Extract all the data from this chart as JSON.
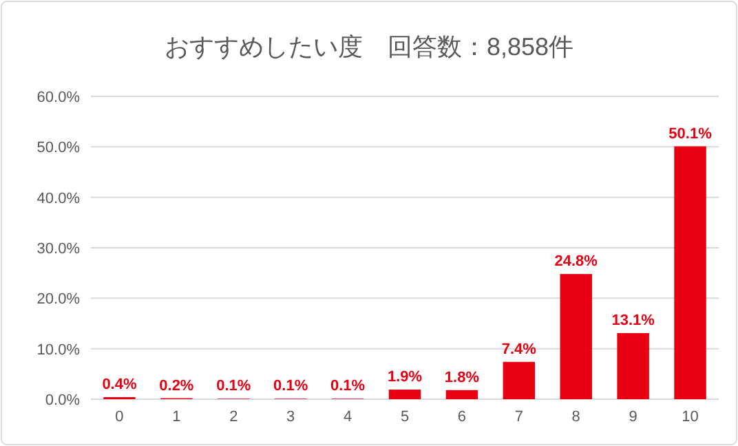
{
  "chart_data": {
    "type": "bar",
    "title": "おすすめしたい度　回答数：8,858件",
    "categories": [
      "0",
      "1",
      "2",
      "3",
      "4",
      "5",
      "6",
      "7",
      "8",
      "9",
      "10"
    ],
    "values": [
      0.4,
      0.2,
      0.1,
      0.1,
      0.1,
      1.9,
      1.8,
      7.4,
      24.8,
      13.1,
      50.1
    ],
    "value_labels": [
      "0.4%",
      "0.2%",
      "0.1%",
      "0.1%",
      "0.1%",
      "1.9%",
      "1.8%",
      "7.4%",
      "24.8%",
      "13.1%",
      "50.1%"
    ],
    "color": "#e60012",
    "ylim": [
      0,
      60
    ],
    "yticks": [
      {
        "value": 0,
        "label": "0.0%"
      },
      {
        "value": 10,
        "label": "10.0%"
      },
      {
        "value": 20,
        "label": "20.0%"
      },
      {
        "value": 30,
        "label": "30.0%"
      },
      {
        "value": 40,
        "label": "40.0%"
      },
      {
        "value": 50,
        "label": "50.0%"
      },
      {
        "value": 60,
        "label": "60.0%"
      }
    ],
    "grid": "y"
  }
}
